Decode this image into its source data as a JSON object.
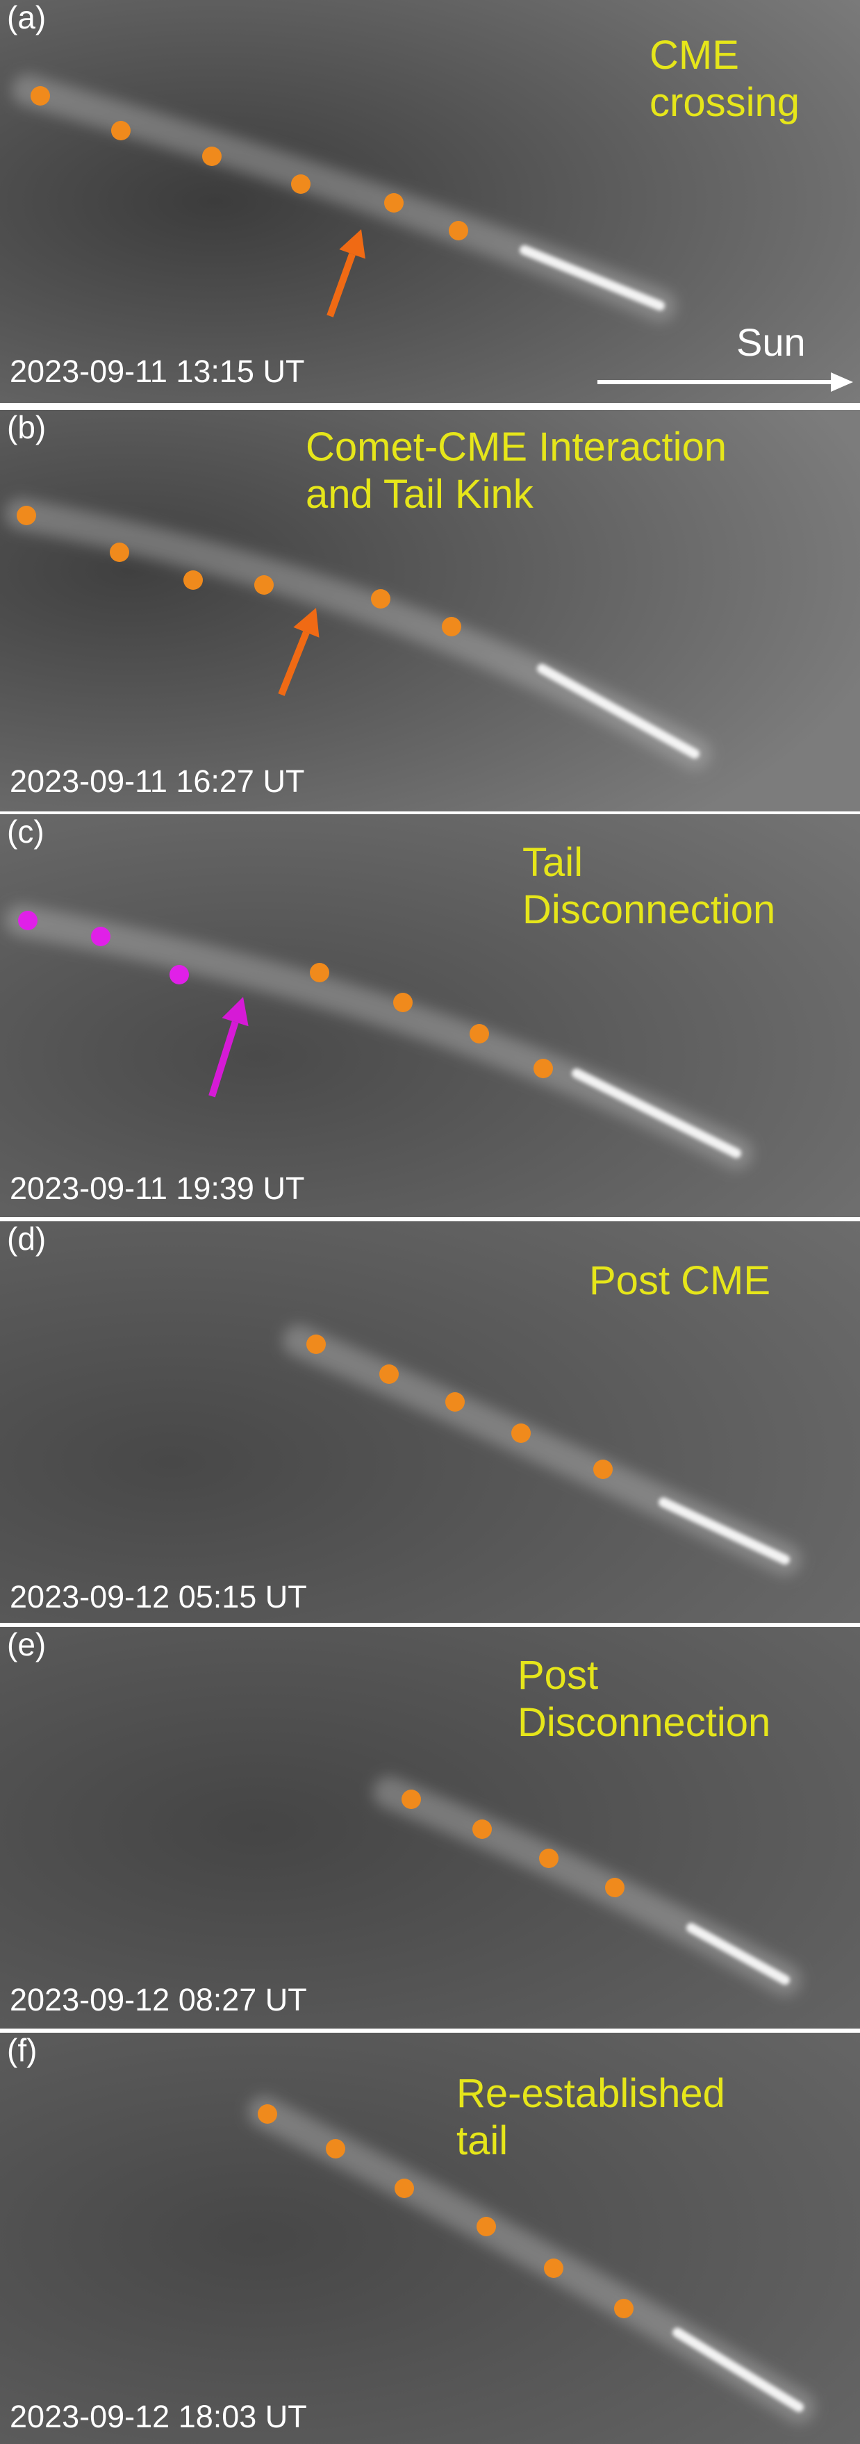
{
  "panels": [
    {
      "label": "(a)",
      "title": "CME\ncrossing",
      "timestamp": "2023-09-11 13:15 UT",
      "tail": [
        [
          950,
          440
        ],
        [
          560,
          280
        ],
        [
          40,
          130
        ]
      ],
      "dots_color": "#f08a1c",
      "dots": [
        [
          58,
          138
        ],
        [
          174,
          188
        ],
        [
          305,
          225
        ],
        [
          433,
          265
        ],
        [
          567,
          292
        ],
        [
          660,
          332
        ]
      ],
      "arrow": {
        "color": "#f06a14",
        "from": [
          475,
          455
        ],
        "to": [
          520,
          330
        ]
      },
      "sun": "Sun"
    },
    {
      "label": "(b)",
      "title": "Comet-CME Interaction\nand Tail Kink",
      "timestamp": "2023-09-11 16:27 UT",
      "tail": [
        [
          1000,
          1085
        ],
        [
          560,
          840
        ],
        [
          30,
          740
        ]
      ],
      "dots_color": "#f08a1c",
      "dots": [
        [
          38,
          742
        ],
        [
          172,
          795
        ],
        [
          278,
          835
        ],
        [
          380,
          842
        ],
        [
          548,
          862
        ],
        [
          650,
          902
        ]
      ],
      "arrow": {
        "color": "#f06a14",
        "from": [
          405,
          1000
        ],
        "to": [
          455,
          875
        ]
      }
    },
    {
      "label": "(c)",
      "title": "Tail\nDisconnection",
      "timestamp": "2023-09-11 19:39 UT",
      "tail": [
        [
          1060,
          1660
        ],
        [
          600,
          1430
        ],
        [
          30,
          1325
        ]
      ],
      "dots_color": "#f08a1c",
      "dots": [
        [
          460,
          1400
        ],
        [
          580,
          1443
        ],
        [
          690,
          1488
        ],
        [
          782,
          1538
        ]
      ],
      "dots2_color": "#e020e8",
      "dots2": [
        [
          40,
          1325
        ],
        [
          145,
          1348
        ],
        [
          258,
          1403
        ]
      ],
      "arrow": {
        "color": "#d61ad6",
        "from": [
          305,
          1578
        ],
        "to": [
          350,
          1435
        ]
      }
    },
    {
      "label": "(d)",
      "title": "Post CME",
      "timestamp": "2023-09-12 05:15 UT",
      "tail": [
        [
          1130,
          2245
        ],
        [
          780,
          2080
        ],
        [
          430,
          1930
        ]
      ],
      "dots_color": "#f08a1c",
      "dots": [
        [
          455,
          1935
        ],
        [
          560,
          1978
        ],
        [
          655,
          2018
        ],
        [
          750,
          2063
        ],
        [
          868,
          2115
        ]
      ]
    },
    {
      "label": "(e)",
      "title": "Post\nDisconnection",
      "timestamp": "2023-09-12 08:27 UT",
      "tail": [
        [
          1130,
          2850
        ],
        [
          860,
          2700
        ],
        [
          560,
          2580
        ]
      ],
      "dots_color": "#f08a1c",
      "dots": [
        [
          592,
          2590
        ],
        [
          694,
          2633
        ],
        [
          790,
          2675
        ],
        [
          885,
          2717
        ]
      ]
    },
    {
      "label": "(f)",
      "title": "Re-established\ntail",
      "timestamp": "2023-09-12 18:03 UT",
      "tail": [
        [
          1150,
          3465
        ],
        [
          800,
          3250
        ],
        [
          380,
          3040
        ]
      ],
      "dots_color": "#f08a1c",
      "dots": [
        [
          385,
          3043
        ],
        [
          483,
          3093
        ],
        [
          582,
          3150
        ],
        [
          700,
          3205
        ],
        [
          797,
          3265
        ],
        [
          898,
          3323
        ]
      ]
    }
  ]
}
